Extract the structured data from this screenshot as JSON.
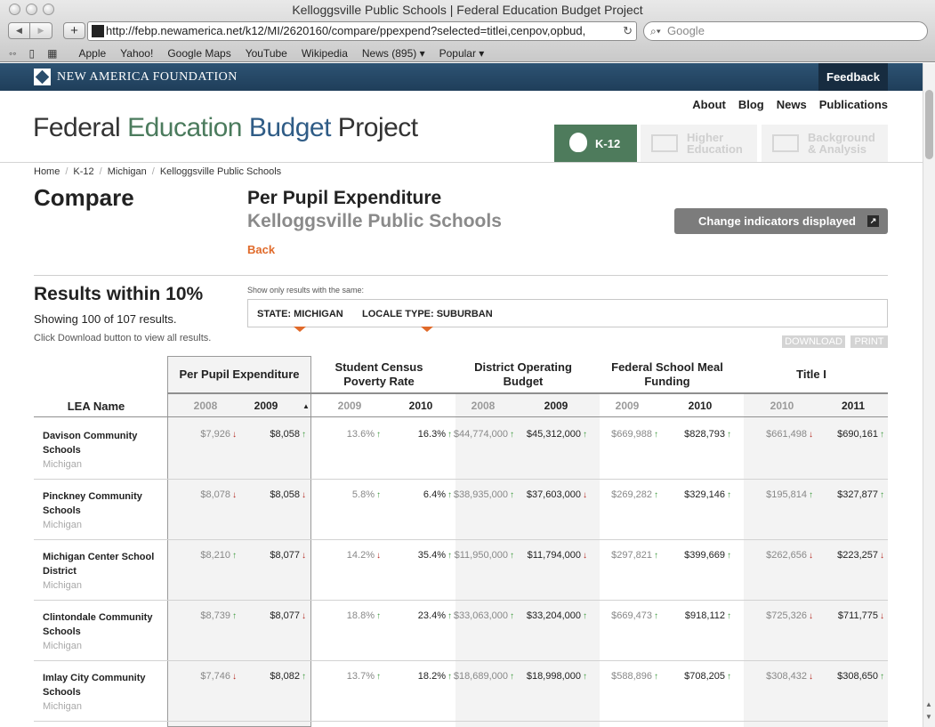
{
  "browser": {
    "window_title": "Kelloggsville Public Schools | Federal Education Budget Project",
    "url": "http://febp.newamerica.net/k12/MI/2620160/compare/ppexpend?selected=titlei,cenpov,opbud,",
    "search_placeholder": "Google",
    "bookmarks": [
      "Apple",
      "Yahoo!",
      "Google Maps",
      "YouTube",
      "Wikipedia",
      "News (895) ▾",
      "Popular ▾"
    ]
  },
  "site": {
    "org_name": "NEW AMERICA FOUNDATION",
    "feedback_label": "Feedback",
    "top_links": [
      "About",
      "Blog",
      "News",
      "Publications"
    ],
    "brand_a": "Federal ",
    "brand_b": "Education",
    "brand_c": " Budget",
    "brand_d": " Project",
    "sections": [
      {
        "label": "K-12"
      },
      {
        "label": "Higher Education"
      },
      {
        "label": "Background & Analysis"
      }
    ]
  },
  "breadcrumb": [
    "Home",
    "K-12",
    "Michigan",
    "Kelloggsville Public Schools"
  ],
  "page": {
    "title": "Compare",
    "indicator": "Per Pupil Expenditure",
    "district": "Kelloggsville Public Schools",
    "back_label": "Back",
    "change_button": "Change indicators displayed"
  },
  "results": {
    "title": "Results within 10%",
    "count": "Showing 100 of 107 results.",
    "note": "Click Download button to view all results.",
    "filter_caption": "Show only results with the same:",
    "filters": [
      "STATE: MICHIGAN",
      "LOCALE TYPE: SUBURBAN"
    ],
    "download_label": "DOWNLOAD",
    "print_label": "PRINT"
  },
  "table": {
    "lea_header": "LEA Name",
    "groups": [
      "Per Pupil Expenditure",
      "Student Census Poverty Rate",
      "District Operating Budget",
      "Federal School Meal Funding",
      "Title I"
    ],
    "years": [
      "2008",
      "2009",
      "2009",
      "2010",
      "2008",
      "2009",
      "2009",
      "2010",
      "2010",
      "2011"
    ],
    "rows": [
      {
        "name": "Davison Community Schools",
        "state": "Michigan",
        "cells": [
          [
            "$7,926",
            "dn"
          ],
          [
            "$8,058",
            "up"
          ],
          [
            "13.6%",
            "up"
          ],
          [
            "16.3%",
            "up"
          ],
          [
            "$44,774,000",
            "up"
          ],
          [
            "$45,312,000",
            "up"
          ],
          [
            "$669,988",
            "up"
          ],
          [
            "$828,793",
            "up"
          ],
          [
            "$661,498",
            "dn"
          ],
          [
            "$690,161",
            "up"
          ]
        ]
      },
      {
        "name": "Pinckney Community Schools",
        "state": "Michigan",
        "cells": [
          [
            "$8,078",
            "dn"
          ],
          [
            "$8,058",
            "dn"
          ],
          [
            "5.8%",
            "up"
          ],
          [
            "6.4%",
            "up"
          ],
          [
            "$38,935,000",
            "up"
          ],
          [
            "$37,603,000",
            "dn"
          ],
          [
            "$269,282",
            "up"
          ],
          [
            "$329,146",
            "up"
          ],
          [
            "$195,814",
            "up"
          ],
          [
            "$327,877",
            "up"
          ]
        ]
      },
      {
        "name": "Michigan Center School District",
        "state": "Michigan",
        "cells": [
          [
            "$8,210",
            "up"
          ],
          [
            "$8,077",
            "dn"
          ],
          [
            "14.2%",
            "dn"
          ],
          [
            "35.4%",
            "up"
          ],
          [
            "$11,950,000",
            "up"
          ],
          [
            "$11,794,000",
            "dn"
          ],
          [
            "$297,821",
            "up"
          ],
          [
            "$399,669",
            "up"
          ],
          [
            "$262,656",
            "dn"
          ],
          [
            "$223,257",
            "dn"
          ]
        ]
      },
      {
        "name": "Clintondale Community Schools",
        "state": "Michigan",
        "cells": [
          [
            "$8,739",
            "up"
          ],
          [
            "$8,077",
            "dn"
          ],
          [
            "18.8%",
            "up"
          ],
          [
            "23.4%",
            "up"
          ],
          [
            "$33,063,000",
            "up"
          ],
          [
            "$33,204,000",
            "up"
          ],
          [
            "$669,473",
            "up"
          ],
          [
            "$918,112",
            "up"
          ],
          [
            "$725,326",
            "dn"
          ],
          [
            "$711,775",
            "dn"
          ]
        ]
      },
      {
        "name": "Imlay City Community Schools",
        "state": "Michigan",
        "cells": [
          [
            "$7,746",
            "dn"
          ],
          [
            "$8,082",
            "up"
          ],
          [
            "13.7%",
            "up"
          ],
          [
            "18.2%",
            "up"
          ],
          [
            "$18,689,000",
            "up"
          ],
          [
            "$18,998,000",
            "up"
          ],
          [
            "$588,896",
            "up"
          ],
          [
            "$708,205",
            "up"
          ],
          [
            "$308,432",
            "dn"
          ],
          [
            "$308,650",
            "up"
          ]
        ]
      }
    ]
  }
}
